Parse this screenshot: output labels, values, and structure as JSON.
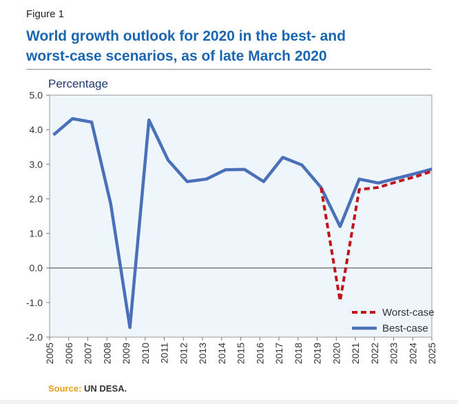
{
  "figure": {
    "label": "Figure 1",
    "title_line1": "World growth outlook for 2020 in the best- and",
    "title_line2": "worst-case scenarios, as of late March 2020"
  },
  "source": {
    "key": "Source:",
    "text": " UN DESA."
  },
  "chart_data": {
    "type": "line",
    "title": "World growth outlook for 2020 in the best- and worst-case scenarios, as of late March 2020",
    "ylabel": "Percentage",
    "xlabel": "",
    "ylim": [
      -2.0,
      5.0
    ],
    "yticks": [
      -2.0,
      -1.0,
      0.0,
      1.0,
      2.0,
      3.0,
      4.0,
      5.0
    ],
    "ytick_labels": [
      "-2.0",
      "-1.0",
      "0.0",
      "1.0",
      "2.0",
      "3.0",
      "4.0",
      "5.0"
    ],
    "xticks": [
      "2005",
      "2006",
      "2007",
      "2008",
      "2009",
      "2010",
      "2011",
      "2012",
      "2013",
      "2014",
      "2015",
      "2016",
      "2017",
      "2018",
      "2019",
      "2020",
      "2021",
      "2022",
      "2023",
      "2024",
      "2025"
    ],
    "grid": false,
    "legend_position": "bottom-right",
    "colors": {
      "best": "#4a70b9",
      "worst": "#c0141b",
      "plot_bg": "#eef5fb",
      "frame": "#9a9a9a"
    },
    "series": [
      {
        "name": "Best-case",
        "style": "solid",
        "points": [
          [
            2005.2,
            3.85
          ],
          [
            2006.2,
            4.32
          ],
          [
            2007.2,
            4.22
          ],
          [
            2008.2,
            1.85
          ],
          [
            2009.2,
            -1.72
          ],
          [
            2010.2,
            4.28
          ],
          [
            2011.2,
            3.12
          ],
          [
            2012.2,
            2.5
          ],
          [
            2013.2,
            2.57
          ],
          [
            2014.2,
            2.84
          ],
          [
            2015.2,
            2.85
          ],
          [
            2016.2,
            2.5
          ],
          [
            2017.2,
            3.2
          ],
          [
            2018.2,
            2.98
          ],
          [
            2019.2,
            2.33
          ],
          [
            2020.2,
            1.2
          ],
          [
            2021.2,
            2.57
          ],
          [
            2022.2,
            2.46
          ],
          [
            2023.2,
            2.6
          ],
          [
            2024.2,
            2.74
          ],
          [
            2025.0,
            2.86
          ]
        ]
      },
      {
        "name": "Worst-case",
        "style": "dashed",
        "points": [
          [
            2019.2,
            2.33
          ],
          [
            2020.2,
            -0.95
          ],
          [
            2021.2,
            2.27
          ],
          [
            2022.2,
            2.33
          ],
          [
            2023.2,
            2.5
          ],
          [
            2024.2,
            2.65
          ],
          [
            2025.0,
            2.8
          ]
        ]
      }
    ]
  }
}
